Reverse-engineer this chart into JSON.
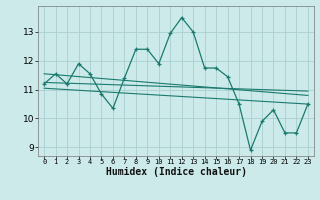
{
  "xlabel": "Humidex (Indice chaleur)",
  "bg_color": "#cceaea",
  "grid_color": "#aacfcf",
  "line_color": "#1a7a6e",
  "x_data": [
    0,
    1,
    2,
    3,
    4,
    5,
    6,
    7,
    8,
    9,
    10,
    11,
    12,
    13,
    14,
    15,
    16,
    17,
    18,
    19,
    20,
    21,
    22,
    23
  ],
  "y_main": [
    11.2,
    11.55,
    11.2,
    11.9,
    11.55,
    10.85,
    10.35,
    11.4,
    12.4,
    12.4,
    11.9,
    12.95,
    13.5,
    13.0,
    11.75,
    11.75,
    11.45,
    10.5,
    8.9,
    9.9,
    10.3,
    9.5,
    9.5,
    10.5
  ],
  "xlim": [
    -0.5,
    23.5
  ],
  "ylim": [
    8.7,
    13.9
  ],
  "yticks": [
    9,
    10,
    11,
    12,
    13
  ],
  "xticks": [
    0,
    1,
    2,
    3,
    4,
    5,
    6,
    7,
    8,
    9,
    10,
    11,
    12,
    13,
    14,
    15,
    16,
    17,
    18,
    19,
    20,
    21,
    22,
    23
  ],
  "trend1_x": [
    0,
    23
  ],
  "trend1_y": [
    11.55,
    10.8
  ],
  "trend2_x": [
    0,
    23
  ],
  "trend2_y": [
    11.25,
    10.95
  ],
  "trend3_x": [
    0,
    23
  ],
  "trend3_y": [
    11.05,
    10.5
  ]
}
